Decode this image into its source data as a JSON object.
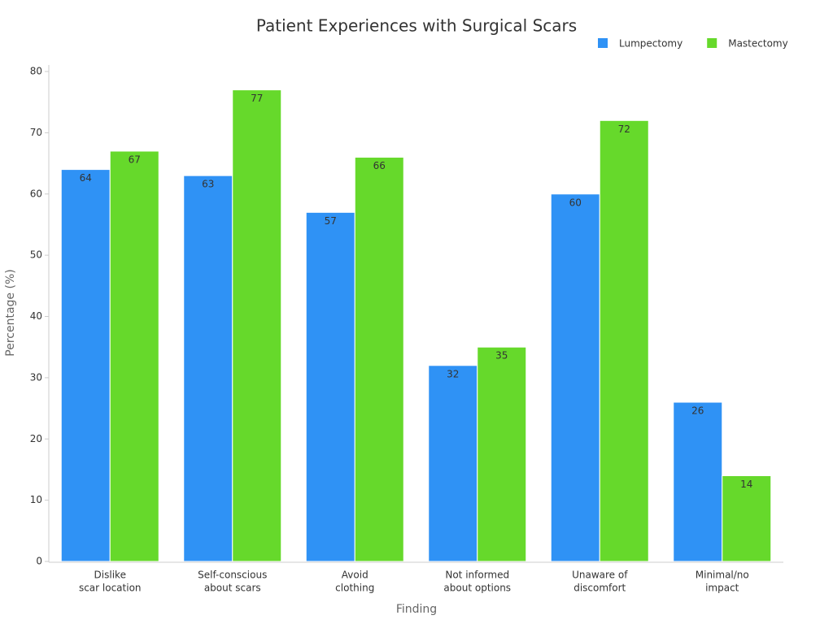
{
  "chart_data": {
    "type": "bar",
    "title": "Patient Experiences with Surgical Scars",
    "x_label": "Finding",
    "y_label": "Percentage (%)",
    "categories": [
      [
        "Dislike",
        "scar location"
      ],
      [
        "Self-conscious",
        "about scars"
      ],
      [
        "Avoid",
        "clothing"
      ],
      [
        "Not informed",
        "about options"
      ],
      [
        "Unaware of",
        "discomfort"
      ],
      [
        "Minimal/no",
        "impact"
      ]
    ],
    "series": [
      {
        "name": "Lumpectomy",
        "color": "#2f92f5",
        "values": [
          64,
          63,
          57,
          32,
          60,
          26
        ]
      },
      {
        "name": "Mastectomy",
        "color": "#66d92b",
        "values": [
          67,
          77,
          66,
          35,
          72,
          14
        ]
      }
    ],
    "ylim": [
      0,
      80
    ],
    "yticks": [
      0,
      10,
      20,
      30,
      40,
      50,
      60,
      70,
      80
    ],
    "legend": "top-right"
  }
}
